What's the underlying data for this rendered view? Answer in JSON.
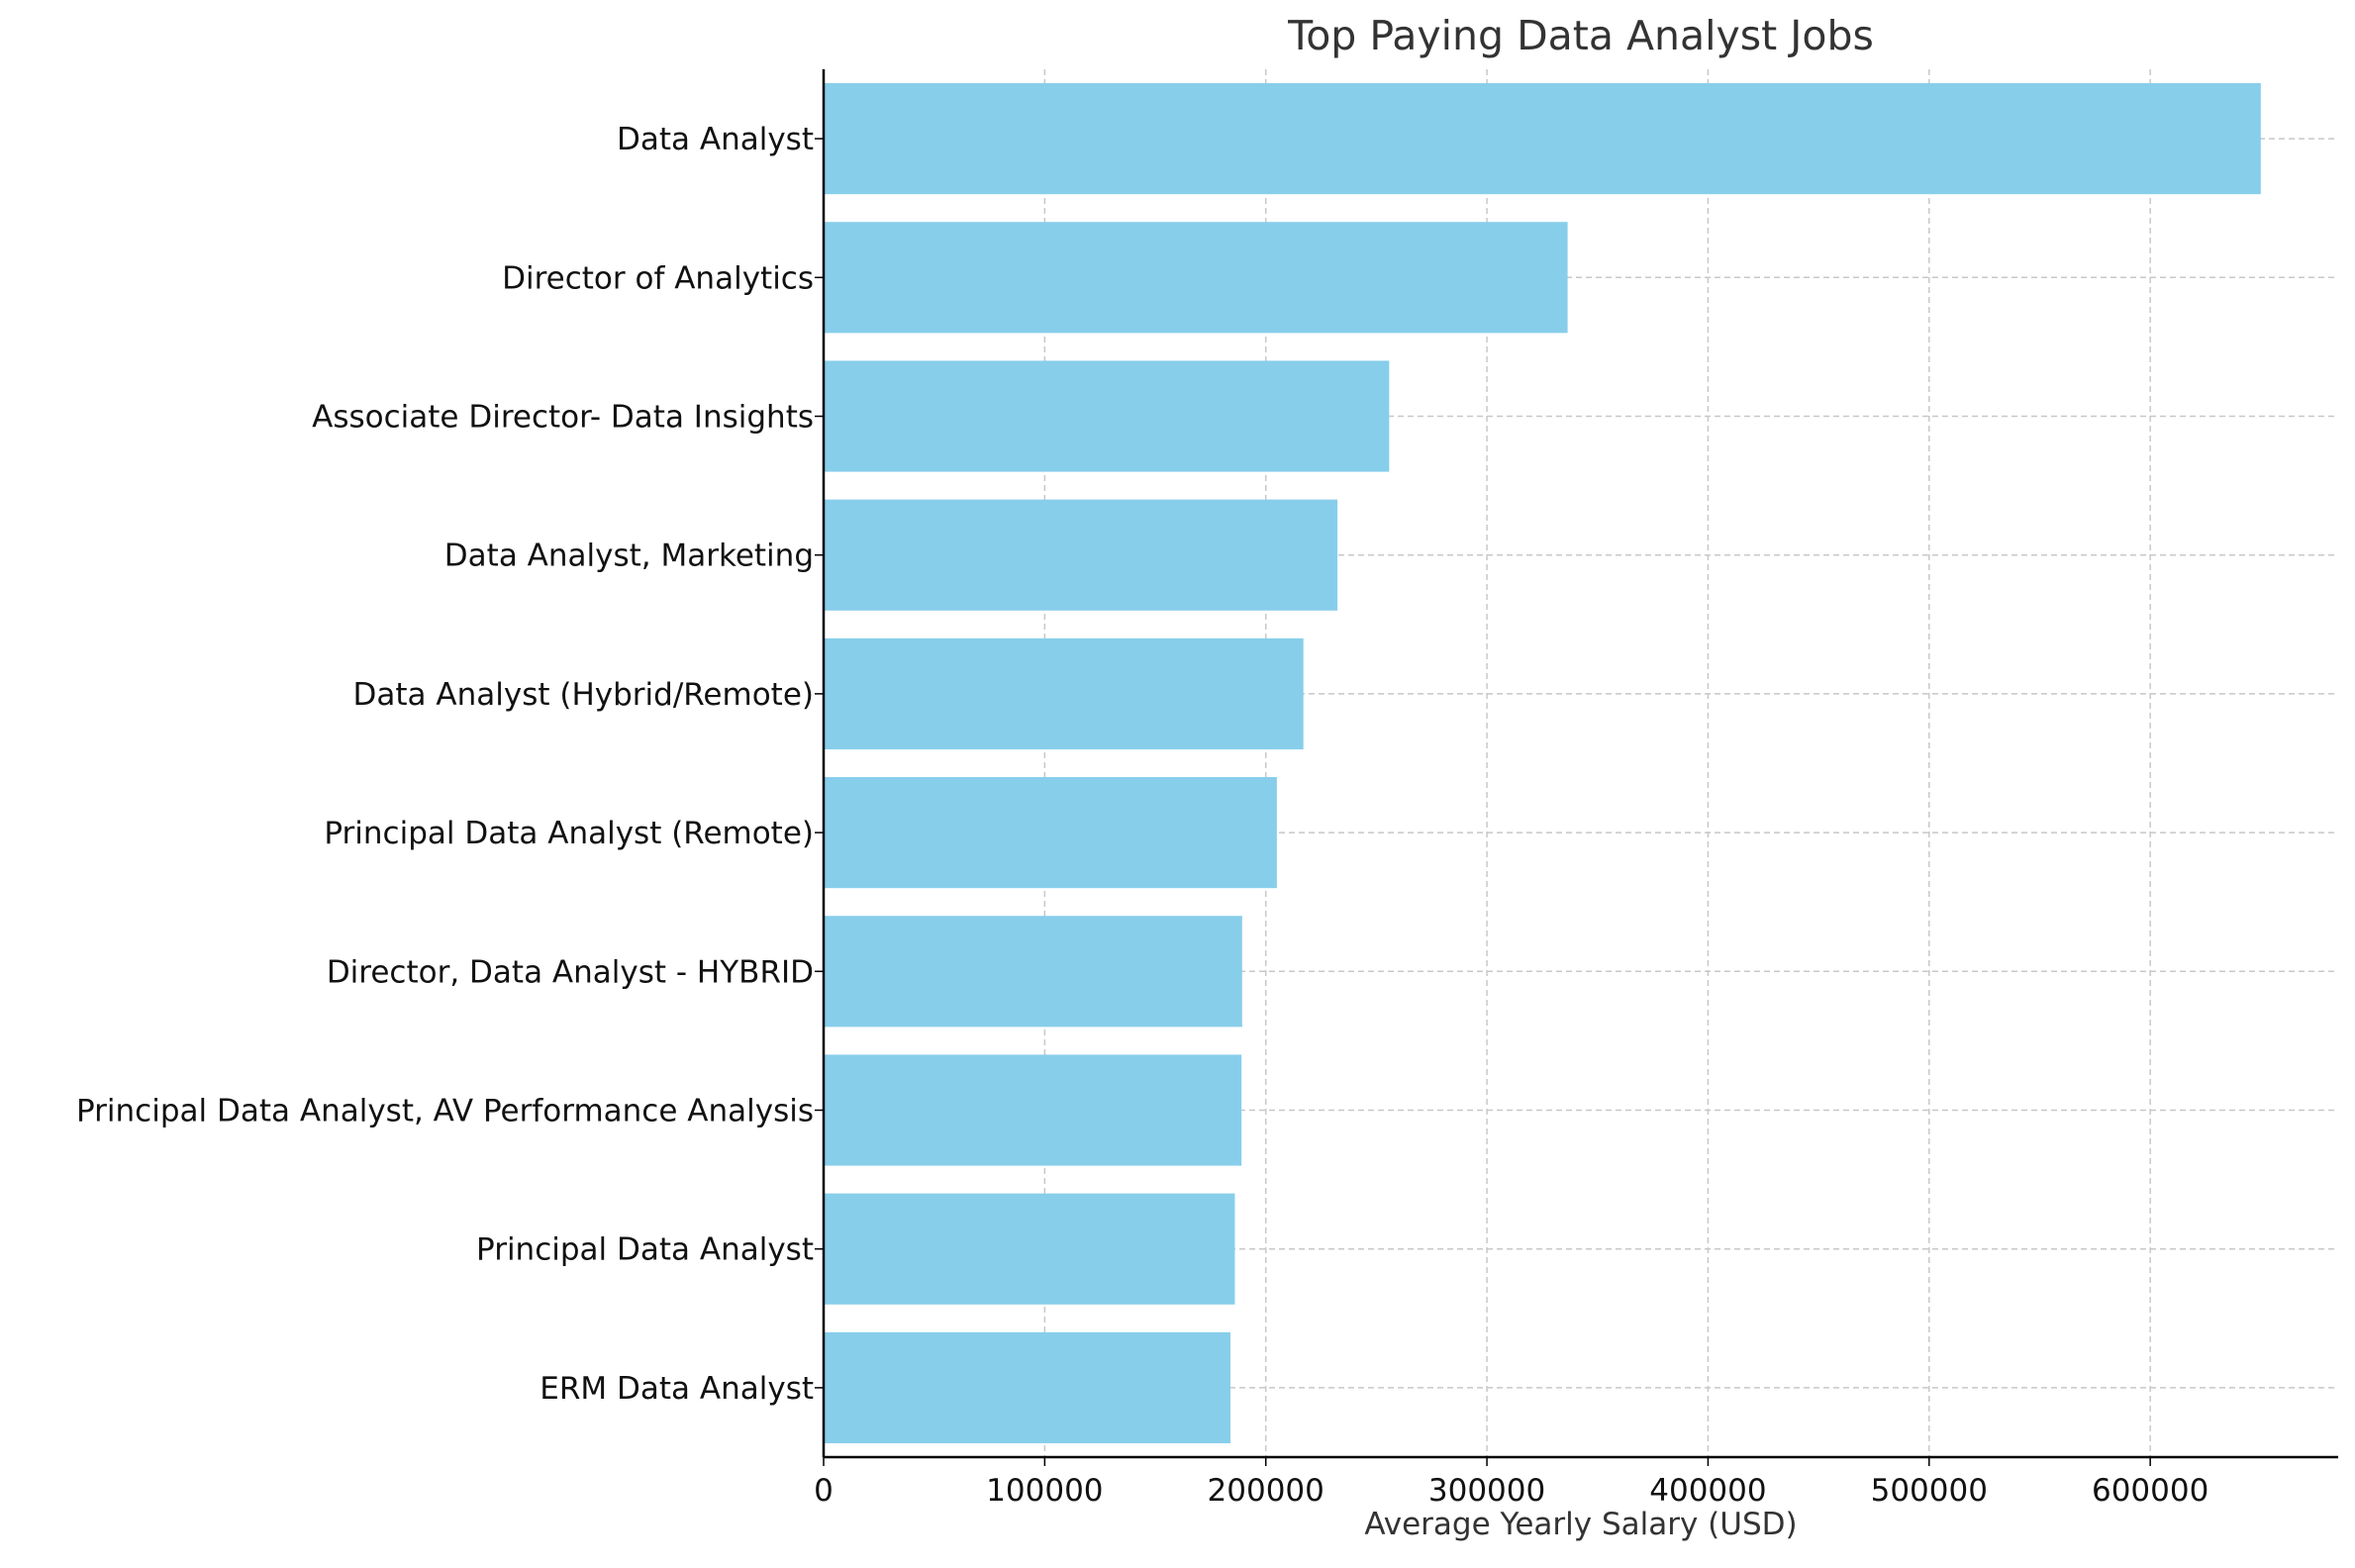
{
  "chart_data": {
    "type": "bar",
    "orientation": "horizontal",
    "title": "Top Paying Data Analyst Jobs",
    "xlabel": "Average Yearly Salary (USD)",
    "ylabel": "",
    "xlim": [
      0,
      685000
    ],
    "xticks": [
      0,
      100000,
      200000,
      300000,
      400000,
      500000,
      600000
    ],
    "xtick_labels": [
      "0",
      "100000",
      "200000",
      "300000",
      "400000",
      "500000",
      "600000"
    ],
    "grid": true,
    "legend": "none",
    "bar_color": "#87ceeb",
    "categories": [
      "Data Analyst",
      "Director of Analytics",
      "Associate Director- Data Insights",
      "Data Analyst, Marketing",
      "Data Analyst (Hybrid/Remote)",
      "Principal Data Analyst (Remote)",
      "Director, Data Analyst - HYBRID",
      "Principal Data Analyst, AV Performance Analysis",
      "Principal Data Analyst",
      "ERM Data Analyst"
    ],
    "values": [
      650000,
      336500,
      255800,
      232400,
      217000,
      205000,
      189300,
      189000,
      186000,
      184000
    ]
  }
}
